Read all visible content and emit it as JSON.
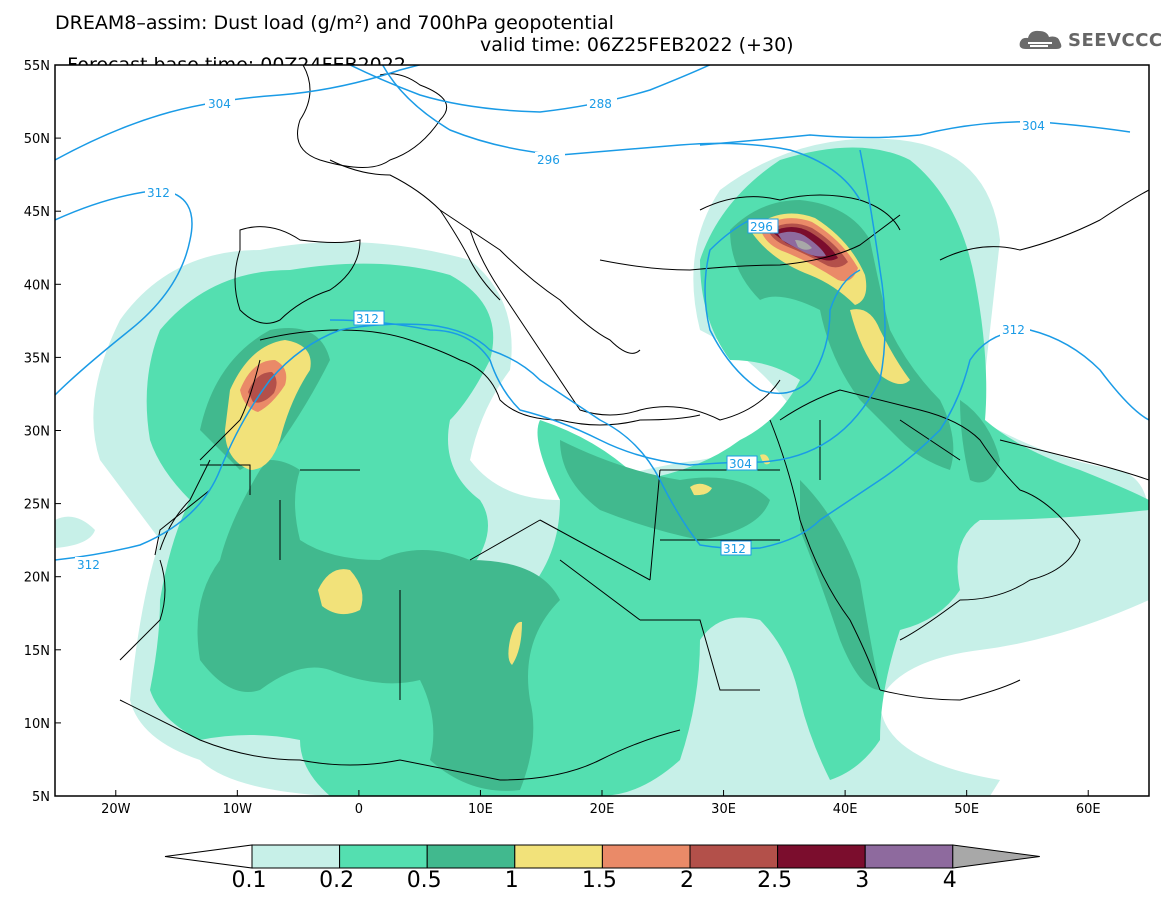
{
  "title": {
    "line1": "DREAM8–assim: Dust load (g/m²) and 700hPa geopotential",
    "base_time": "Forecast base time: 00Z24FEB2022",
    "valid_time": "valid time: 06Z25FEB2022 (+30)"
  },
  "logo": {
    "text": "SEEVCCC",
    "icon": "cloud-icon"
  },
  "axes": {
    "lat_labels": [
      "55N",
      "50N",
      "45N",
      "40N",
      "35N",
      "30N",
      "25N",
      "20N",
      "15N",
      "10N",
      "5N"
    ],
    "lon_labels": [
      "20W",
      "10W",
      "0",
      "10E",
      "20E",
      "30E",
      "40E",
      "50E",
      "60E"
    ]
  },
  "contours": {
    "labels": [
      "304",
      "288",
      "312",
      "296",
      "304",
      "296",
      "312",
      "312",
      "304",
      "312"
    ]
  },
  "colorbar": {
    "labels": [
      "0.1",
      "0.2",
      "0.5",
      "1",
      "1.5",
      "2",
      "2.5",
      "3",
      "4"
    ],
    "colors": [
      "#ffffff",
      "#c7f0e8",
      "#54dfb0",
      "#41b98e",
      "#f2e27a",
      "#ea8a68",
      "#b3504a",
      "#7b0d2d",
      "#8e6a9e",
      "#a8a8a8"
    ]
  },
  "colors": {
    "contour": "#1a9be6",
    "coast": "#000000"
  }
}
